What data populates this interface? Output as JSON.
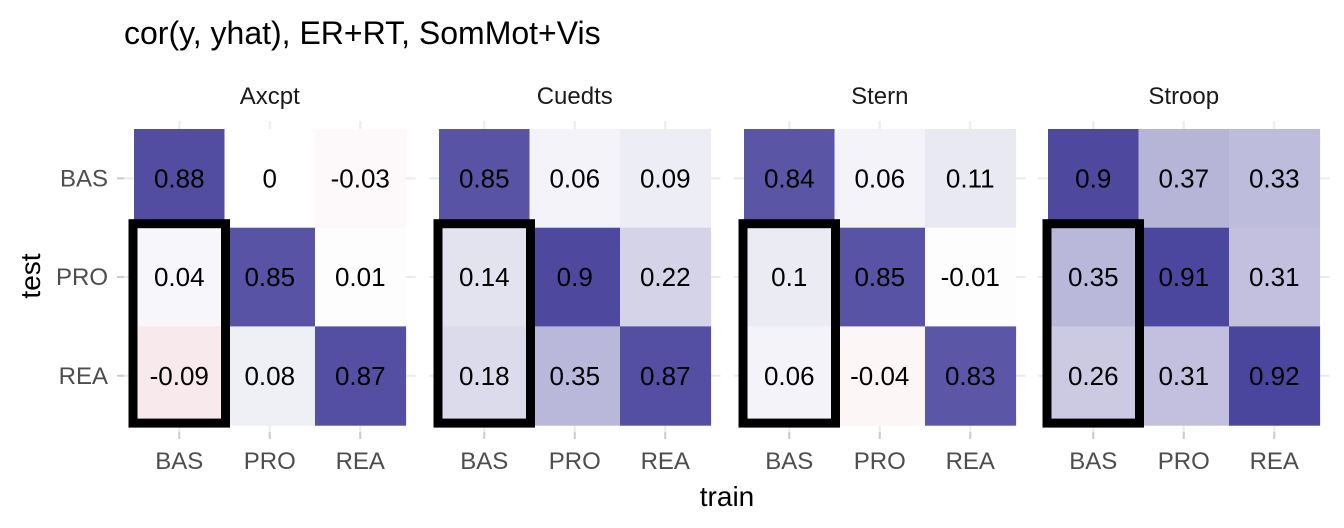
{
  "chart_data": {
    "type": "heatmap",
    "title": "cor(y, yhat), ER+RT, SomMot+Vis",
    "xlabel": "train",
    "ylabel": "test",
    "x_categories": [
      "BAS",
      "PRO",
      "REA"
    ],
    "y_categories": [
      "BAS",
      "PRO",
      "REA"
    ],
    "color_scale": {
      "low": "#b2182b",
      "mid": "#ffffff",
      "high": "#3a3594",
      "limits": [
        -1,
        1
      ]
    },
    "highlight": {
      "train": "BAS",
      "test": [
        "PRO",
        "REA"
      ]
    },
    "panels": [
      {
        "name": "Axcpt",
        "values": [
          {
            "test": "BAS",
            "cells": [
              "0.88",
              "0",
              "-0.03"
            ]
          },
          {
            "test": "PRO",
            "cells": [
              "0.04",
              "0.85",
              "0.01"
            ]
          },
          {
            "test": "REA",
            "cells": [
              "-0.09",
              "0.08",
              "0.87"
            ]
          }
        ]
      },
      {
        "name": "Cuedts",
        "values": [
          {
            "test": "BAS",
            "cells": [
              "0.85",
              "0.06",
              "0.09"
            ]
          },
          {
            "test": "PRO",
            "cells": [
              "0.14",
              "0.9",
              "0.22"
            ]
          },
          {
            "test": "REA",
            "cells": [
              "0.18",
              "0.35",
              "0.87"
            ]
          }
        ]
      },
      {
        "name": "Stern",
        "values": [
          {
            "test": "BAS",
            "cells": [
              "0.84",
              "0.06",
              "0.11"
            ]
          },
          {
            "test": "PRO",
            "cells": [
              "0.1",
              "0.85",
              "-0.01"
            ]
          },
          {
            "test": "REA",
            "cells": [
              "0.06",
              "-0.04",
              "0.83"
            ]
          }
        ]
      },
      {
        "name": "Stroop",
        "values": [
          {
            "test": "BAS",
            "cells": [
              "0.9",
              "0.37",
              "0.33"
            ]
          },
          {
            "test": "PRO",
            "cells": [
              "0.35",
              "0.91",
              "0.31"
            ]
          },
          {
            "test": "REA",
            "cells": [
              "0.26",
              "0.31",
              "0.92"
            ]
          }
        ]
      }
    ]
  }
}
